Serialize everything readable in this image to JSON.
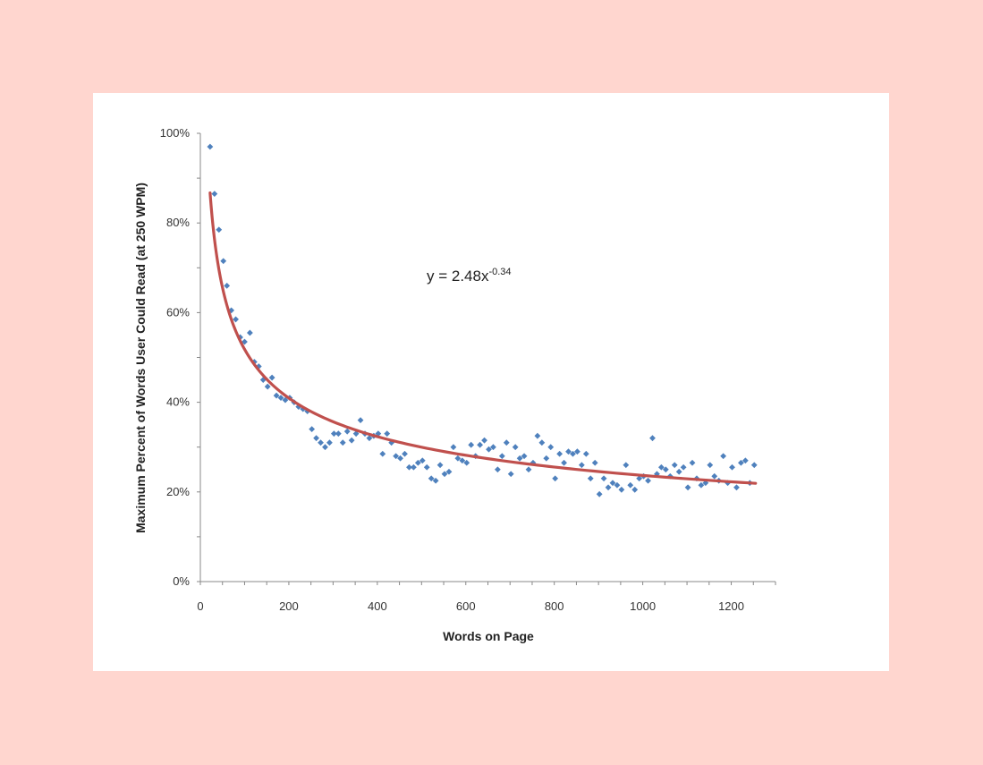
{
  "colors": {
    "page_background": "#ffd6cf",
    "card_background": "#ffffff",
    "point_color": "#4f81bd",
    "trend_color": "#c0504d",
    "axis_color": "#888888"
  },
  "chart_data": {
    "type": "scatter",
    "xlabel": "Words on Page",
    "ylabel": "Maximum Percent of Words User Could Read (at 250 WPM)",
    "xlim": [
      0,
      1300
    ],
    "ylim": [
      0,
      100
    ],
    "x_ticks": [
      0,
      200,
      400,
      600,
      800,
      1000,
      1200
    ],
    "x_tick_labels": [
      "0",
      "200",
      "400",
      "600",
      "800",
      "1000",
      "1200"
    ],
    "y_ticks": [
      0,
      20,
      40,
      60,
      80,
      100
    ],
    "y_tick_labels": [
      "0%",
      "20%",
      "40%",
      "60%",
      "80%",
      "100%"
    ],
    "grid": false,
    "legend": "none",
    "trendline": {
      "type": "power",
      "a": 2.48,
      "b": -0.34,
      "x_range": [
        22,
        1255
      ],
      "equation_base": "y = 2.48x",
      "equation_exponent": "-0.34"
    },
    "series": [
      {
        "x": [
          22,
          32,
          42,
          52,
          60,
          70,
          80,
          90,
          100,
          112,
          122,
          132,
          142,
          152,
          162,
          172,
          182,
          192,
          202,
          212,
          222,
          232,
          242,
          252,
          262,
          272,
          282,
          292,
          302,
          312,
          322,
          332,
          342,
          352,
          362,
          372,
          382,
          392,
          402,
          412,
          422,
          432,
          442,
          452,
          462,
          472,
          482,
          492,
          502,
          512,
          522,
          532,
          542,
          552,
          562,
          572,
          582,
          592,
          602,
          612,
          622,
          632,
          642,
          652,
          662,
          672,
          682,
          692,
          702,
          712,
          722,
          732,
          742,
          752,
          762,
          772,
          782,
          792,
          802,
          812,
          822,
          832,
          842,
          852,
          862,
          872,
          882,
          892,
          902,
          912,
          922,
          932,
          942,
          952,
          962,
          972,
          982,
          992,
          1002,
          1012,
          1022,
          1032,
          1042,
          1052,
          1062,
          1072,
          1082,
          1092,
          1102,
          1112,
          1122,
          1132,
          1142,
          1152,
          1162,
          1172,
          1182,
          1192,
          1202,
          1212,
          1222,
          1232,
          1242,
          1252
        ],
        "y": [
          97,
          86.5,
          78.5,
          71.5,
          66,
          60.5,
          58.5,
          54.5,
          53.5,
          55.5,
          49,
          48,
          45,
          43.5,
          45.5,
          41.5,
          41,
          40.5,
          41,
          40,
          39,
          38.5,
          38,
          34,
          32,
          31,
          30,
          31,
          33,
          33,
          31,
          33.5,
          31.5,
          33,
          36,
          33,
          32,
          32.5,
          33,
          28.5,
          33,
          31,
          28,
          27.5,
          28.5,
          25.5,
          25.5,
          26.5,
          27,
          25.5,
          23,
          22.5,
          26,
          24,
          24.5,
          30,
          27.5,
          27,
          26.5,
          30.5,
          28,
          30.5,
          31.5,
          29.5,
          30,
          25,
          28,
          31,
          24,
          30,
          27.5,
          28,
          25,
          26.5,
          32.5,
          31,
          27.5,
          30,
          23,
          28.5,
          26.5,
          29,
          28.5,
          29,
          26,
          28.5,
          23,
          26.5,
          19.5,
          23,
          21,
          22,
          21.5,
          20.5,
          26,
          21.5,
          20.5,
          23,
          23.5,
          22.5,
          32,
          24,
          25.5,
          25,
          23.5,
          26,
          24.5,
          25.5,
          21,
          26.5,
          23,
          21.5,
          22,
          26,
          23.5,
          22.5,
          28,
          22,
          25.5,
          21,
          26.5,
          27,
          22,
          26
        ]
      }
    ]
  }
}
